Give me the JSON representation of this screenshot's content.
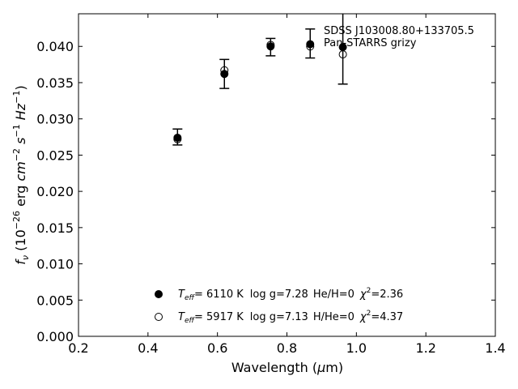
{
  "chart_data": {
    "type": "scatter",
    "title": "",
    "xlabel": {
      "pre": "Wavelength (",
      "greek": "μ",
      "post": "m)"
    },
    "ylabel": {
      "base": "f",
      "sub": "ν",
      "text1": " (10",
      "exp1": "−26",
      "text2": " erg ",
      "cm": "cm",
      "exp2": "−2",
      "s": "s",
      "exp3": "−1",
      "hz": " Hz",
      "exp4": "−1",
      "close": ")"
    },
    "xlim": [
      0.2,
      1.4
    ],
    "ylim": [
      0.0,
      0.0445
    ],
    "xticks": [
      "0.2",
      "0.4",
      "0.6",
      "0.8",
      "1.0",
      "1.2",
      "1.4"
    ],
    "yticks": [
      "0.000",
      "0.005",
      "0.010",
      "0.015",
      "0.020",
      "0.025",
      "0.030",
      "0.035",
      "0.040"
    ],
    "annotation": {
      "line1": "SDSS J103008.80+133705.5",
      "line2": "Pan-STARRS grizy"
    },
    "observed": {
      "x": [
        0.485,
        0.62,
        0.753,
        0.867,
        0.961
      ],
      "y": [
        0.0275,
        0.0362,
        0.0399,
        0.0404,
        0.0398
      ],
      "yerr": [
        0.0011,
        0.002,
        0.0012,
        0.002,
        0.005
      ]
    },
    "series": [
      {
        "name": "H",
        "marker": "filled-circle",
        "x": [
          0.485,
          0.62,
          0.753,
          0.867,
          0.961
        ],
        "y": [
          0.0274,
          0.0362,
          0.04,
          0.0403,
          0.0399
        ]
      },
      {
        "name": "He",
        "marker": "open-circle",
        "x": [
          0.485,
          0.62,
          0.753,
          0.867,
          0.961
        ],
        "y": [
          0.0272,
          0.0367,
          0.0402,
          0.04,
          0.0389
        ]
      }
    ],
    "legend": [
      {
        "marker": "filled-circle",
        "T": "T",
        "eff": "eff",
        "temp": "=  6110 K",
        "logg": "log g=7.28",
        "comp": "He/H=0",
        "chi": "χ",
        "chi_exp": "2",
        "chi_val": "=2.36"
      },
      {
        "marker": "open-circle",
        "T": "T",
        "eff": "eff",
        "temp": "=  5917 K",
        "logg": "log g=7.13",
        "comp": "H/He=0",
        "chi": "χ",
        "chi_exp": "2",
        "chi_val": "=4.37"
      }
    ],
    "legend_placement": "lower-center",
    "grid": false
  }
}
